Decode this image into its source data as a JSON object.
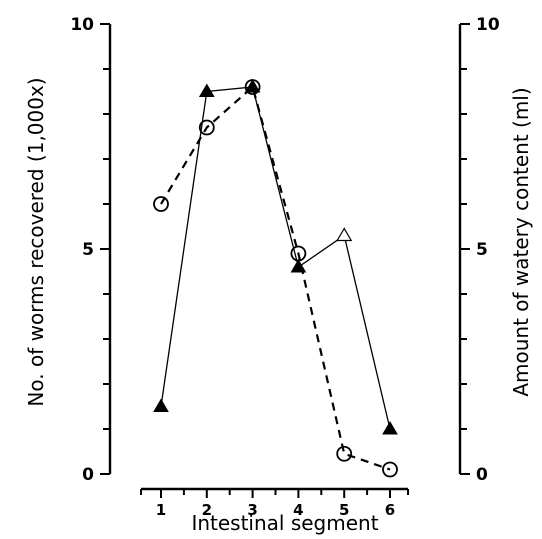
{
  "chart_data": {
    "type": "line",
    "x": [
      1,
      2,
      3,
      4,
      5,
      6
    ],
    "xlabel": "Intestinal segment",
    "ylabel": "No. of worms recovered (1,000x)",
    "y2label": "Amount of watery content (ml)",
    "ylim": [
      0,
      10
    ],
    "y2lim": [
      0,
      10
    ],
    "yticks": [
      0,
      5,
      10
    ],
    "y2ticks": [
      0,
      5,
      10
    ],
    "grid": false,
    "legend": "none",
    "series": [
      {
        "axis": "right",
        "style": "solid line, filled triangles",
        "x": [
          1,
          2,
          3,
          4,
          5,
          6
        ],
        "values": [
          1.5,
          8.5,
          8.6,
          4.6,
          5.3,
          1.0
        ]
      },
      {
        "axis": "left",
        "style": "dashed line, open circles",
        "x": [
          1,
          2,
          3,
          4,
          5,
          6
        ],
        "values": [
          6.0,
          7.7,
          8.6,
          4.9,
          0.45,
          0.1
        ]
      }
    ]
  }
}
